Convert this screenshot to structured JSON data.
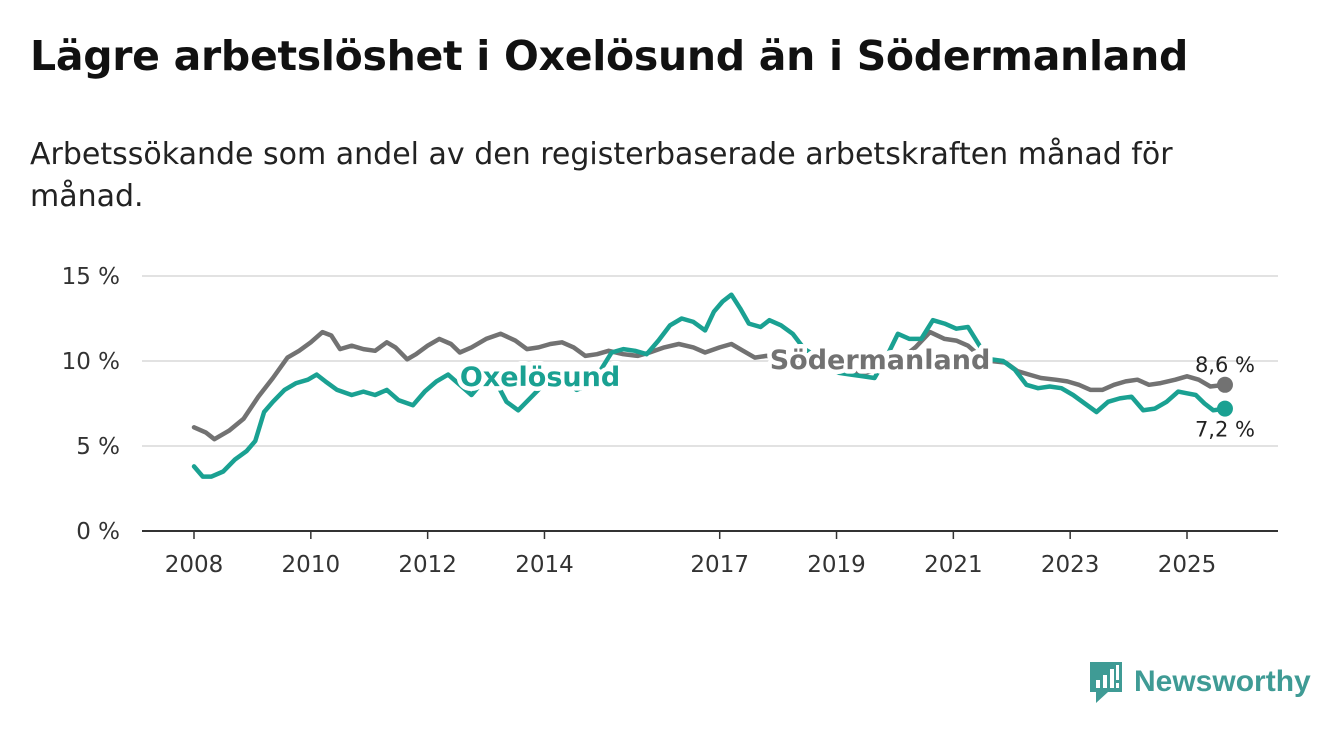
{
  "title": "Lägre arbetslöshet i Oxelösund än i Södermanland",
  "subtitle": "Arbetssökande som andel av den registerbaserade arbetskraften månad för månad.",
  "brand": {
    "name": "Newsworthy",
    "color": "#3f9b95"
  },
  "chart_data": {
    "type": "line",
    "title": "Lägre arbetslöshet i Oxelösund än i Södermanland",
    "xlabel": "",
    "ylabel": "",
    "xlim": [
      2007.6,
      2026.5
    ],
    "ylim": [
      0,
      15
    ],
    "yticks": [
      0,
      5,
      10,
      15
    ],
    "ytick_labels": [
      "0 %",
      "5 %",
      "10 %",
      "15 %"
    ],
    "xticks": [
      2008,
      2010,
      2012,
      2014,
      2017,
      2019,
      2021,
      2023,
      2025
    ],
    "xtick_labels": [
      "2008",
      "2010",
      "2012",
      "2014",
      "2017",
      "2019",
      "2021",
      "2023",
      "2025"
    ],
    "grid": true,
    "series": [
      {
        "name": "Södermanland",
        "color": "#727272",
        "end_label": "8,6 %",
        "points": [
          [
            2008.0,
            6.1
          ],
          [
            2008.2,
            5.8
          ],
          [
            2008.35,
            5.4
          ],
          [
            2008.6,
            5.9
          ],
          [
            2008.85,
            6.6
          ],
          [
            2009.1,
            7.9
          ],
          [
            2009.35,
            9.0
          ],
          [
            2009.6,
            10.2
          ],
          [
            2009.8,
            10.6
          ],
          [
            2010.0,
            11.1
          ],
          [
            2010.2,
            11.7
          ],
          [
            2010.35,
            11.5
          ],
          [
            2010.5,
            10.7
          ],
          [
            2010.7,
            10.9
          ],
          [
            2010.9,
            10.7
          ],
          [
            2011.1,
            10.6
          ],
          [
            2011.3,
            11.1
          ],
          [
            2011.45,
            10.8
          ],
          [
            2011.65,
            10.1
          ],
          [
            2011.8,
            10.4
          ],
          [
            2012.0,
            10.9
          ],
          [
            2012.2,
            11.3
          ],
          [
            2012.4,
            11.0
          ],
          [
            2012.55,
            10.5
          ],
          [
            2012.75,
            10.8
          ],
          [
            2013.0,
            11.3
          ],
          [
            2013.25,
            11.6
          ],
          [
            2013.5,
            11.2
          ],
          [
            2013.7,
            10.7
          ],
          [
            2013.9,
            10.8
          ],
          [
            2014.1,
            11.0
          ],
          [
            2014.3,
            11.1
          ],
          [
            2014.5,
            10.8
          ],
          [
            2014.7,
            10.3
          ],
          [
            2014.9,
            10.4
          ],
          [
            2015.1,
            10.6
          ],
          [
            2015.35,
            10.4
          ],
          [
            2015.6,
            10.3
          ],
          [
            2015.8,
            10.5
          ],
          [
            2016.05,
            10.8
          ],
          [
            2016.3,
            11.0
          ],
          [
            2016.55,
            10.8
          ],
          [
            2016.75,
            10.5
          ],
          [
            2017.0,
            10.8
          ],
          [
            2017.2,
            11.0
          ],
          [
            2017.4,
            10.6
          ],
          [
            2017.6,
            10.2
          ],
          [
            2017.8,
            10.3
          ],
          [
            2018.0,
            10.2
          ],
          [
            2018.3,
            10.0
          ],
          [
            2018.6,
            9.7
          ],
          [
            2018.9,
            9.6
          ],
          [
            2019.2,
            9.4
          ],
          [
            2019.5,
            9.3
          ],
          [
            2019.8,
            9.6
          ],
          [
            2020.1,
            10.1
          ],
          [
            2020.35,
            10.8
          ],
          [
            2020.6,
            11.7
          ],
          [
            2020.85,
            11.3
          ],
          [
            2021.05,
            11.2
          ],
          [
            2021.25,
            10.9
          ],
          [
            2021.45,
            10.3
          ],
          [
            2021.65,
            10.0
          ],
          [
            2021.9,
            9.9
          ],
          [
            2022.1,
            9.4
          ],
          [
            2022.3,
            9.2
          ],
          [
            2022.5,
            9.0
          ],
          [
            2022.75,
            8.9
          ],
          [
            2022.95,
            8.8
          ],
          [
            2023.15,
            8.6
          ],
          [
            2023.35,
            8.3
          ],
          [
            2023.55,
            8.3
          ],
          [
            2023.75,
            8.6
          ],
          [
            2023.95,
            8.8
          ],
          [
            2024.15,
            8.9
          ],
          [
            2024.35,
            8.6
          ],
          [
            2024.55,
            8.7
          ],
          [
            2024.8,
            8.9
          ],
          [
            2025.0,
            9.1
          ],
          [
            2025.2,
            8.9
          ],
          [
            2025.4,
            8.5
          ],
          [
            2025.65,
            8.6
          ]
        ]
      },
      {
        "name": "Oxelösund",
        "color": "#1aa192",
        "end_label": "7,2 %",
        "points": [
          [
            2008.0,
            3.8
          ],
          [
            2008.15,
            3.2
          ],
          [
            2008.3,
            3.2
          ],
          [
            2008.5,
            3.5
          ],
          [
            2008.7,
            4.2
          ],
          [
            2008.9,
            4.7
          ],
          [
            2009.05,
            5.3
          ],
          [
            2009.2,
            7.0
          ],
          [
            2009.35,
            7.6
          ],
          [
            2009.55,
            8.3
          ],
          [
            2009.75,
            8.7
          ],
          [
            2009.95,
            8.9
          ],
          [
            2010.1,
            9.2
          ],
          [
            2010.25,
            8.8
          ],
          [
            2010.45,
            8.3
          ],
          [
            2010.7,
            8.0
          ],
          [
            2010.9,
            8.2
          ],
          [
            2011.1,
            8.0
          ],
          [
            2011.3,
            8.3
          ],
          [
            2011.5,
            7.7
          ],
          [
            2011.75,
            7.4
          ],
          [
            2011.95,
            8.2
          ],
          [
            2012.15,
            8.8
          ],
          [
            2012.35,
            9.2
          ],
          [
            2012.55,
            8.6
          ],
          [
            2012.75,
            8.0
          ],
          [
            2012.95,
            8.8
          ],
          [
            2013.15,
            8.9
          ],
          [
            2013.35,
            7.6
          ],
          [
            2013.55,
            7.1
          ],
          [
            2013.75,
            7.8
          ],
          [
            2013.95,
            8.5
          ],
          [
            2014.15,
            8.9
          ],
          [
            2014.35,
            8.9
          ],
          [
            2014.55,
            8.3
          ],
          [
            2014.75,
            8.6
          ],
          [
            2014.95,
            9.4
          ],
          [
            2015.15,
            10.5
          ],
          [
            2015.35,
            10.7
          ],
          [
            2015.55,
            10.6
          ],
          [
            2015.75,
            10.4
          ],
          [
            2015.95,
            11.2
          ],
          [
            2016.15,
            12.1
          ],
          [
            2016.35,
            12.5
          ],
          [
            2016.55,
            12.3
          ],
          [
            2016.75,
            11.8
          ],
          [
            2016.9,
            12.9
          ],
          [
            2017.05,
            13.5
          ],
          [
            2017.2,
            13.9
          ],
          [
            2017.35,
            13.1
          ],
          [
            2017.5,
            12.2
          ],
          [
            2017.7,
            12.0
          ],
          [
            2017.85,
            12.4
          ],
          [
            2018.05,
            12.1
          ],
          [
            2018.25,
            11.6
          ],
          [
            2018.45,
            10.7
          ],
          [
            2018.65,
            10.3
          ],
          [
            2018.85,
            9.6
          ],
          [
            2019.05,
            9.3
          ],
          [
            2019.25,
            9.2
          ],
          [
            2019.45,
            9.1
          ],
          [
            2019.65,
            9.0
          ],
          [
            2019.85,
            10.2
          ],
          [
            2020.05,
            11.6
          ],
          [
            2020.25,
            11.3
          ],
          [
            2020.45,
            11.3
          ],
          [
            2020.65,
            12.4
          ],
          [
            2020.85,
            12.2
          ],
          [
            2021.05,
            11.9
          ],
          [
            2021.25,
            12.0
          ],
          [
            2021.45,
            10.9
          ],
          [
            2021.65,
            10.1
          ],
          [
            2021.85,
            10.0
          ],
          [
            2022.05,
            9.5
          ],
          [
            2022.25,
            8.6
          ],
          [
            2022.45,
            8.4
          ],
          [
            2022.65,
            8.5
          ],
          [
            2022.85,
            8.4
          ],
          [
            2023.05,
            8.0
          ],
          [
            2023.25,
            7.5
          ],
          [
            2023.45,
            7.0
          ],
          [
            2023.65,
            7.6
          ],
          [
            2023.85,
            7.8
          ],
          [
            2024.05,
            7.9
          ],
          [
            2024.25,
            7.1
          ],
          [
            2024.45,
            7.2
          ],
          [
            2024.65,
            7.6
          ],
          [
            2024.85,
            8.2
          ],
          [
            2025.0,
            8.1
          ],
          [
            2025.15,
            8.0
          ],
          [
            2025.3,
            7.5
          ],
          [
            2025.45,
            7.1
          ],
          [
            2025.65,
            7.2
          ]
        ]
      }
    ]
  }
}
